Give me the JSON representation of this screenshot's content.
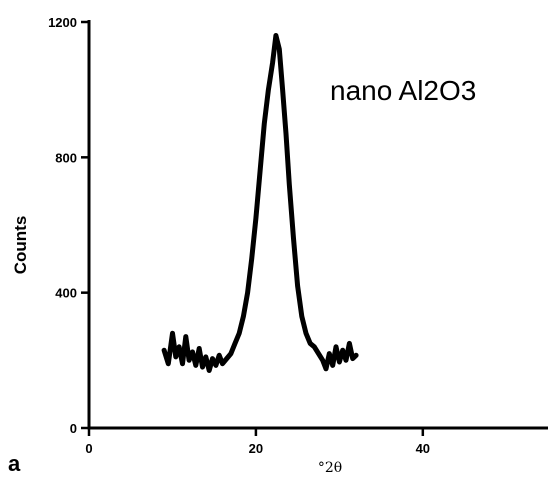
{
  "chart_data": {
    "type": "line",
    "title": "",
    "xlabel": "°2θ",
    "ylabel": "Counts",
    "annotation": "nano Al2O3",
    "panel_label": "a",
    "xlim": [
      0,
      55
    ],
    "ylim": [
      0,
      1200
    ],
    "xticks": [
      {
        "value": 0,
        "label": "0"
      },
      {
        "value": 20,
        "label": "20"
      },
      {
        "value": 40,
        "label": "40"
      }
    ],
    "yticks": [
      {
        "value": 0,
        "label": "0"
      },
      {
        "value": 400,
        "label": "400"
      },
      {
        "value": 800,
        "label": "800"
      },
      {
        "value": 1200,
        "label": "1200"
      }
    ],
    "grid": false,
    "legend": "none",
    "line_color": "#000000",
    "series": [
      {
        "x": [
          9,
          9.5,
          10,
          10.4,
          10.8,
          11.2,
          11.6,
          12,
          12.4,
          12.8,
          13.2,
          13.6,
          14,
          14.4,
          14.8,
          15.2,
          15.6,
          16,
          16.5,
          17,
          17.5,
          18,
          18.5,
          19,
          19.5,
          20,
          20.5,
          21,
          21.5,
          22,
          22.4,
          22.8,
          23.2,
          23.6,
          24,
          24.5,
          25,
          25.5,
          26,
          26.5,
          27,
          27.5,
          28,
          28.4,
          28.8,
          29.2,
          29.6,
          30,
          30.4,
          30.8,
          31.2,
          31.6,
          32
        ],
        "y": [
          230,
          190,
          280,
          210,
          240,
          190,
          270,
          200,
          225,
          185,
          235,
          180,
          210,
          170,
          205,
          185,
          215,
          190,
          205,
          220,
          250,
          280,
          330,
          400,
          500,
          620,
          760,
          900,
          1000,
          1080,
          1160,
          1120,
          1000,
          870,
          720,
          560,
          420,
          330,
          280,
          250,
          240,
          220,
          200,
          175,
          220,
          185,
          240,
          195,
          230,
          200,
          250,
          205,
          215
        ]
      }
    ]
  }
}
